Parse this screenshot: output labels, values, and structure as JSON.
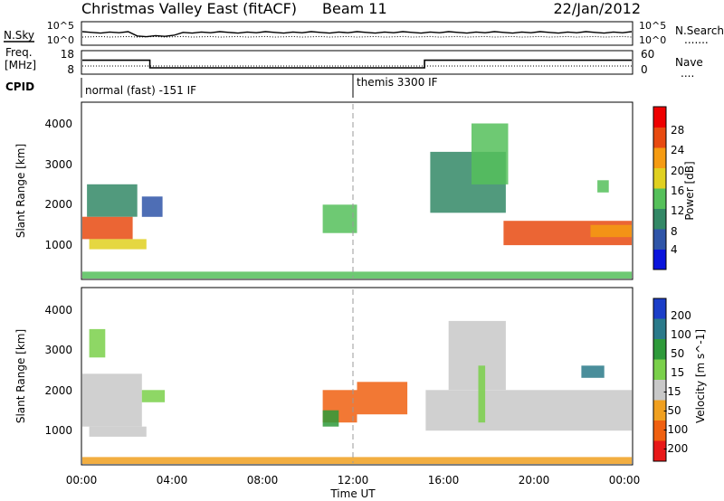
{
  "header": {
    "site": "Christmas Valley East (fitACF)",
    "beam": "Beam 11",
    "date": "22/Jan/2012"
  },
  "noise_panel": {
    "left_label": "N.Sky",
    "left_ticks": [
      "10^5",
      "10^0"
    ],
    "right_ticks": [
      "10^5",
      "10^0"
    ],
    "right_label": "N.Search",
    "right_legend_line": "......."
  },
  "freq_panel": {
    "left_label_1": "Freq.",
    "left_label_2": "[MHz]",
    "left_ticks": [
      "18",
      "8"
    ],
    "right_ticks": [
      "60",
      "0"
    ],
    "right_label": "Nave",
    "right_legend_line": "....",
    "freq_series": [
      {
        "t": 0,
        "f": 14
      },
      {
        "t": 2.95,
        "f": 14
      },
      {
        "t": 2.95,
        "f": 10.5
      },
      {
        "t": 14.95,
        "f": 10.5
      },
      {
        "t": 14.95,
        "f": 14
      },
      {
        "t": 24,
        "f": 14
      }
    ]
  },
  "cpid_panel": {
    "label": "CPID",
    "modes": [
      {
        "name": "normal (fast) -151 IF",
        "start": 0
      },
      {
        "name": "themis 3300 IF",
        "start": 12
      }
    ]
  },
  "time_axis": {
    "label": "Time UT",
    "ticks": [
      "00:00",
      "04:00",
      "08:00",
      "12:00",
      "16:00",
      "20:00",
      "00:00"
    ]
  },
  "range_axis": {
    "label": "Slant Range [km]",
    "ticks": [
      "1000",
      "2000",
      "3000",
      "4000"
    ],
    "ylim": [
      180,
      4500
    ]
  },
  "power_scale": {
    "label": "Power [dB]",
    "ticks": [
      "4",
      "8",
      "12",
      "16",
      "20",
      "24",
      "28"
    ],
    "colors": [
      "#0a14dc",
      "#2f55a8",
      "#338866",
      "#55c05a",
      "#e0d020",
      "#f59b12",
      "#e84a10",
      "#ee0000"
    ]
  },
  "velocity_scale": {
    "label": "Velocity [m s^-1]",
    "ticks": [
      "200",
      "100",
      "50",
      "15",
      "-15",
      "-50",
      "-100",
      "-200"
    ],
    "colors": [
      "#1b3ec8",
      "#2a7a8a",
      "#2e9a3a",
      "#7ad04a",
      "#c8c8c8",
      "#f0a020",
      "#f06010",
      "#e81818"
    ]
  },
  "chart_data": [
    {
      "type": "heatmap",
      "title": "Christmas Valley East (fitACF) Beam 11 22/Jan/2012",
      "xlabel": "Time UT",
      "ylabel": "Slant Range [km]",
      "xlim": [
        "00:00",
        "24:00"
      ],
      "ylim": [
        180,
        4500
      ],
      "colorbar": "Power [dB]",
      "regions": [
        {
          "t0": 0.0,
          "t1": 2.2,
          "r0": 1150,
          "r1": 1700,
          "value": 26
        },
        {
          "t0": 0.2,
          "t1": 2.4,
          "r0": 1700,
          "r1": 2500,
          "value": 12
        },
        {
          "t0": 0.3,
          "t1": 2.8,
          "r0": 900,
          "r1": 1150,
          "value": 18
        },
        {
          "t0": 2.6,
          "t1": 3.5,
          "r0": 1700,
          "r1": 2200,
          "value": 6
        },
        {
          "t0": 10.5,
          "t1": 12.0,
          "r0": 1300,
          "r1": 2000,
          "value": 16
        },
        {
          "t0": 15.2,
          "t1": 18.5,
          "r0": 1800,
          "r1": 3300,
          "value": 12
        },
        {
          "t0": 17.0,
          "t1": 18.6,
          "r0": 2500,
          "r1": 4000,
          "value": 14
        },
        {
          "t0": 18.4,
          "t1": 24.0,
          "r0": 1000,
          "r1": 1600,
          "value": 28
        },
        {
          "t0": 22.2,
          "t1": 24.0,
          "r0": 1200,
          "r1": 1500,
          "value": 24
        },
        {
          "t0": 22.5,
          "t1": 23.0,
          "r0": 2300,
          "r1": 2600,
          "value": 14
        },
        {
          "t0": 0.0,
          "t1": 24.0,
          "r0": 180,
          "r1": 350,
          "value": 16
        }
      ]
    },
    {
      "type": "heatmap",
      "xlabel": "Time UT",
      "ylabel": "Slant Range [km]",
      "xlim": [
        "00:00",
        "24:00"
      ],
      "ylim": [
        180,
        4500
      ],
      "colorbar": "Velocity [m s^-1]",
      "regions": [
        {
          "t0": 0.0,
          "t1": 2.6,
          "r0": 1100,
          "r1": 2400,
          "value": 0
        },
        {
          "t0": 0.3,
          "t1": 1.0,
          "r0": 2800,
          "r1": 3500,
          "value": 30
        },
        {
          "t0": 0.3,
          "t1": 2.8,
          "r0": 850,
          "r1": 1100,
          "value": 0
        },
        {
          "t0": 2.6,
          "t1": 3.6,
          "r0": 1700,
          "r1": 2000,
          "value": 30
        },
        {
          "t0": 10.5,
          "t1": 12.0,
          "r0": 1200,
          "r1": 2000,
          "value": -80
        },
        {
          "t0": 10.5,
          "t1": 11.2,
          "r0": 1100,
          "r1": 1500,
          "value": 80
        },
        {
          "t0": 12.0,
          "t1": 14.2,
          "r0": 1400,
          "r1": 2200,
          "value": -60
        },
        {
          "t0": 15.0,
          "t1": 24.0,
          "r0": 1000,
          "r1": 2000,
          "value": 0
        },
        {
          "t0": 16.0,
          "t1": 18.5,
          "r0": 2000,
          "r1": 3700,
          "value": 0
        },
        {
          "t0": 17.3,
          "t1": 17.6,
          "r0": 1200,
          "r1": 2600,
          "value": 40
        },
        {
          "t0": 21.8,
          "t1": 22.8,
          "r0": 2300,
          "r1": 2600,
          "value": 180
        },
        {
          "t0": 0.0,
          "t1": 24.0,
          "r0": 180,
          "r1": 350,
          "value": -40
        }
      ]
    }
  ]
}
